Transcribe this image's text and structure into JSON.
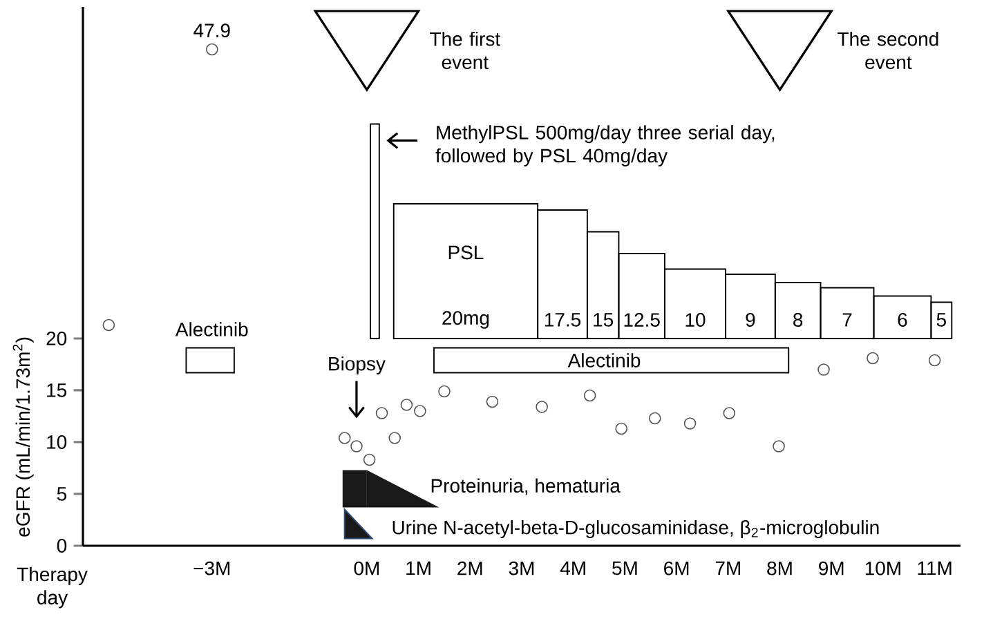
{
  "chart_data": {
    "type": "scatter",
    "xlabel": "Therapy day",
    "ylabel": "eGFR (mL/min/1.73m$^{2}$)",
    "x": [
      -5,
      -3,
      -0.43,
      -0.2,
      0.05,
      0.29,
      0.54,
      0.77,
      1.03,
      1.5,
      2.43,
      3.39,
      4.32,
      4.93,
      5.58,
      6.26,
      7.02,
      7.98,
      8.85,
      9.8,
      11.0
    ],
    "values": [
      21.3,
      47.9,
      10.4,
      9.6,
      8.3,
      12.8,
      10.4,
      13.6,
      13.0,
      14.9,
      13.9,
      13.4,
      14.5,
      11.3,
      12.3,
      11.8,
      12.8,
      9.6,
      17.0,
      18.1,
      17.9
    ],
    "value_labels": [
      null,
      "47.9",
      null,
      null,
      null,
      null,
      null,
      null,
      null,
      null,
      null,
      null,
      null,
      null,
      null,
      null,
      null,
      null,
      null,
      null,
      null
    ],
    "color": "#555555",
    "marker": "circle",
    "xlim": [
      -5.5,
      11.5
    ],
    "xticks": [
      {
        "value": -3,
        "label": "−3M"
      },
      {
        "value": 0,
        "label": "0M"
      },
      {
        "value": 1,
        "label": "1M"
      },
      {
        "value": 2,
        "label": "2M"
      },
      {
        "value": 3,
        "label": "3M"
      },
      {
        "value": 4,
        "label": "4M"
      },
      {
        "value": 5,
        "label": "5M"
      },
      {
        "value": 6,
        "label": "6M"
      },
      {
        "value": 7,
        "label": "7M"
      },
      {
        "value": 8,
        "label": "8M"
      },
      {
        "value": 9,
        "label": "9M"
      },
      {
        "value": 10,
        "label": "10M"
      },
      {
        "value": 11,
        "label": "11M"
      }
    ],
    "ylim": [
      0,
      52
    ],
    "yticks": [
      0,
      5,
      10,
      15,
      20
    ],
    "annotations": [
      "The first event",
      "The second event",
      "MethylPSL 500mg/day three serial day, followed by PSL 40mg/day",
      "PSL",
      "20mg",
      "17.5",
      "15",
      "12.5",
      "10",
      "9",
      "8",
      "7",
      "6",
      "5",
      "Alectinib",
      "Alectinib",
      "Biopsy",
      "Proteinuria, hematuria",
      "Urine N-acetyl-beta-D-glucosaminidase, β$_{2}$-microglobulin"
    ]
  }
}
